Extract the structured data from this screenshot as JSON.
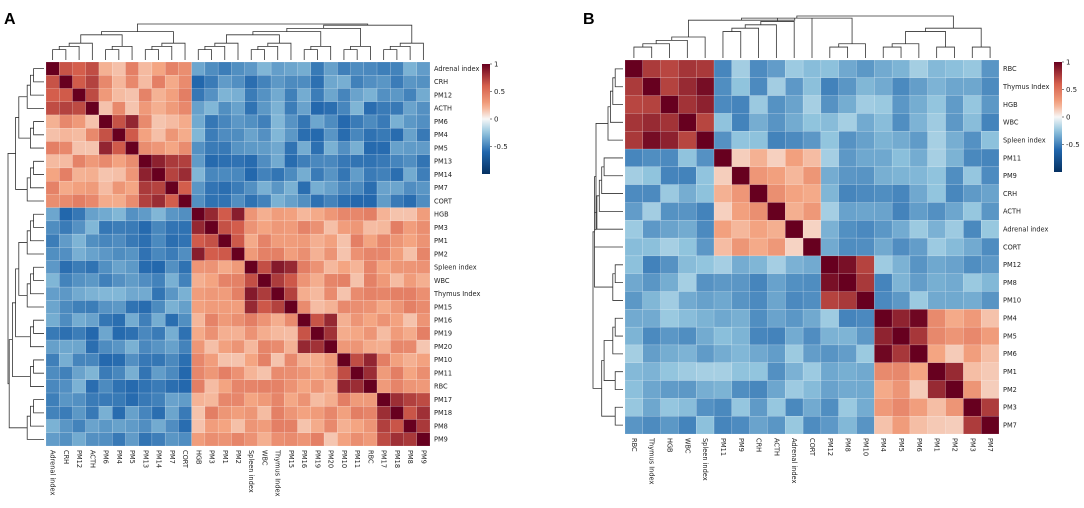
{
  "figure": {
    "colors": {
      "neg": "#053061",
      "mid": "#f7f7f7",
      "pos": "#67001f"
    }
  },
  "chart_data": [
    {
      "type": "heatmap",
      "panel_label": "A",
      "title": "",
      "labels": [
        "Adrenal index",
        "CRH",
        "PM12",
        "ACTH",
        "PM6",
        "PM4",
        "PM5",
        "PM13",
        "PM14",
        "PM7",
        "CORT",
        "HGB",
        "PM3",
        "PM1",
        "PM2",
        "Spleen index",
        "WBC",
        "Thymus Index",
        "PM15",
        "PM16",
        "PM19",
        "PM20",
        "PM10",
        "PM11",
        "RBC",
        "PM17",
        "PM18",
        "PM8",
        "PM9"
      ],
      "groups": [
        [
          0,
          1,
          2,
          3,
          4,
          5,
          6,
          7,
          8,
          9,
          10
        ],
        [
          11,
          12,
          13,
          14,
          15,
          16,
          17,
          18,
          19,
          20,
          21,
          22,
          23,
          24,
          25,
          26,
          27,
          28
        ]
      ],
      "blocks": [
        [
          0,
          1,
          2,
          3
        ],
        [
          4,
          5,
          6
        ],
        [
          7,
          8,
          9,
          10
        ],
        [
          11,
          12,
          13,
          14
        ],
        [
          15,
          16,
          17,
          18
        ],
        [
          19,
          20,
          21
        ],
        [
          22,
          23,
          24
        ],
        [
          25,
          26,
          27,
          28
        ]
      ],
      "within_block": 0.75,
      "within_group": 0.3,
      "between_groups": -0.45,
      "colorbar": {
        "min": -1,
        "max": 1,
        "ticks": [
          "1",
          "0.5",
          "0",
          "-0.5"
        ],
        "tick_values": [
          1,
          0.5,
          0,
          -0.5
        ]
      }
    },
    {
      "type": "heatmap",
      "panel_label": "B",
      "title": "",
      "labels": [
        "RBC",
        "Thymus Index",
        "HGB",
        "WBC",
        "Spleen index",
        "PM11",
        "PM9",
        "CRH",
        "ACTH",
        "Adrenal index",
        "CORT",
        "PM12",
        "PM8",
        "PM10",
        "PM4",
        "PM5",
        "PM6",
        "PM1",
        "PM2",
        "PM3",
        "PM7"
      ],
      "groups": [
        [
          0,
          1,
          2,
          3,
          4
        ],
        [
          5,
          6,
          7,
          8,
          9,
          10
        ],
        [
          11,
          12,
          13
        ],
        [
          14,
          15,
          16,
          17,
          18,
          19,
          20
        ]
      ],
      "blocks": [
        [
          0,
          1,
          2,
          3,
          4
        ],
        [
          5
        ],
        [
          6
        ],
        [
          7
        ],
        [
          8
        ],
        [
          9
        ],
        [
          10
        ],
        [
          11,
          12,
          13
        ],
        [
          14,
          15,
          16
        ],
        [
          17,
          18
        ],
        [
          19,
          20
        ]
      ],
      "within_block": 0.85,
      "within_group": 0.25,
      "between_groups": -0.35,
      "colorbar": {
        "min": -1,
        "max": 1,
        "ticks": [
          "1",
          "0.5",
          "0",
          "-0.5"
        ],
        "tick_values": [
          1,
          0.5,
          0,
          -0.5
        ]
      }
    }
  ]
}
